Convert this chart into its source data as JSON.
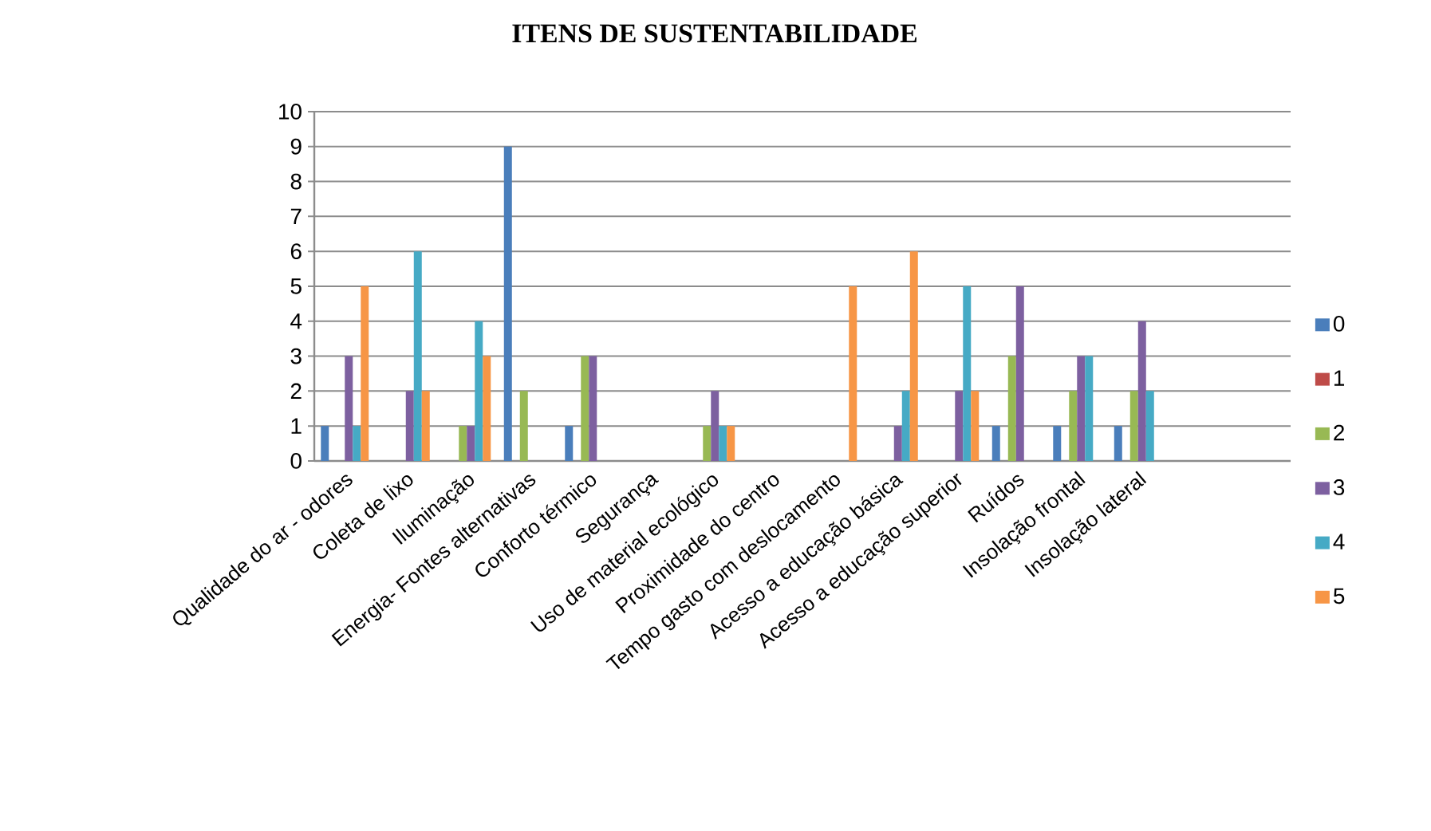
{
  "chart_data": {
    "type": "bar",
    "title": "ITENS DE SUSTENTABILIDADE",
    "categories": [
      "Qualidade do ar - odores",
      "Coleta de lixo",
      "Iluminação",
      "Energia- Fontes alternativas",
      "Conforto térmico",
      "Segurança",
      "Uso de material ecológico",
      "Proximidade do centro",
      "Tempo gasto com deslocamento",
      "Acesso a educação básica",
      "Acesso a educação superior",
      "Ruídos",
      "Insolação frontal",
      "Insolação lateral",
      null,
      null
    ],
    "series": [
      {
        "name": "0",
        "color": "#4a7ebb",
        "values": [
          1,
          0,
          0,
          9,
          1,
          0,
          0,
          0,
          0,
          0,
          0,
          1,
          1,
          1,
          0,
          0
        ]
      },
      {
        "name": "1",
        "color": "#be4b48",
        "values": [
          0,
          0,
          0,
          0,
          0,
          0,
          0,
          0,
          0,
          0,
          0,
          0,
          0,
          0,
          0,
          0
        ]
      },
      {
        "name": "2",
        "color": "#98b954",
        "values": [
          0,
          0,
          1,
          2,
          3,
          0,
          1,
          0,
          0,
          0,
          0,
          3,
          2,
          2,
          0,
          0
        ]
      },
      {
        "name": "3",
        "color": "#7d60a0",
        "values": [
          3,
          2,
          1,
          0,
          3,
          0,
          2,
          0,
          0,
          1,
          2,
          5,
          3,
          4,
          0,
          0
        ]
      },
      {
        "name": "4",
        "color": "#46aac5",
        "values": [
          1,
          6,
          4,
          0,
          0,
          0,
          1,
          0,
          0,
          2,
          5,
          0,
          3,
          2,
          0,
          0
        ]
      },
      {
        "name": "5",
        "color": "#f79646",
        "values": [
          5,
          2,
          3,
          0,
          0,
          0,
          1,
          0,
          5,
          6,
          2,
          0,
          0,
          0,
          0,
          0
        ]
      }
    ],
    "ylim": [
      0,
      10
    ],
    "yticks": [
      0,
      1,
      2,
      3,
      4,
      5,
      6,
      7,
      8,
      9,
      10
    ],
    "grid": "y",
    "legend": "right"
  }
}
